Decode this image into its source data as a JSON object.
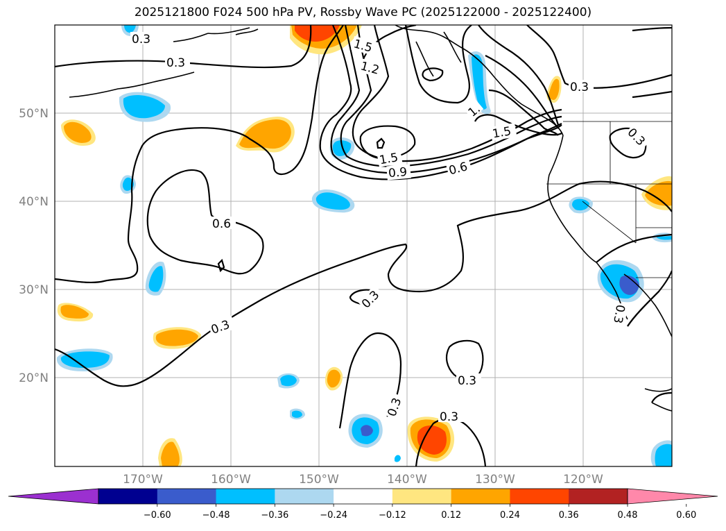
{
  "title": "2025121800 F024 500 hPa PV, Rossby Wave PC (2025122000 - 2025122400)",
  "lat_labels": [
    "50°N",
    "40°N",
    "30°N",
    "20°N"
  ],
  "lon_labels": [
    "170°W",
    "160°W",
    "150°W",
    "140°W",
    "130°W",
    "120°W"
  ],
  "contour_labels": [
    "0.3",
    "0.3",
    "1.5",
    "1.2",
    "0.3",
    "1.",
    "1.5",
    "1.5",
    "0.9",
    "0.6",
    "0.3",
    "0.6",
    "0.3",
    "0.3",
    "0.3",
    "0.3",
    "0.3",
    "0.3"
  ],
  "colorbar": {
    "colors": [
      "#9b30d0",
      "#000090",
      "#3a5ccc",
      "#00bfff",
      "#add8f0",
      "#ffffff",
      "#ffe680",
      "#ffa500",
      "#ff4500",
      "#b22222",
      "#ff88aa"
    ],
    "ticks": [
      "−0.60",
      "−0.48",
      "−0.36",
      "−0.24",
      "−0.12",
      "0.12",
      "0.24",
      "0.36",
      "0.48",
      "0.60"
    ]
  }
}
